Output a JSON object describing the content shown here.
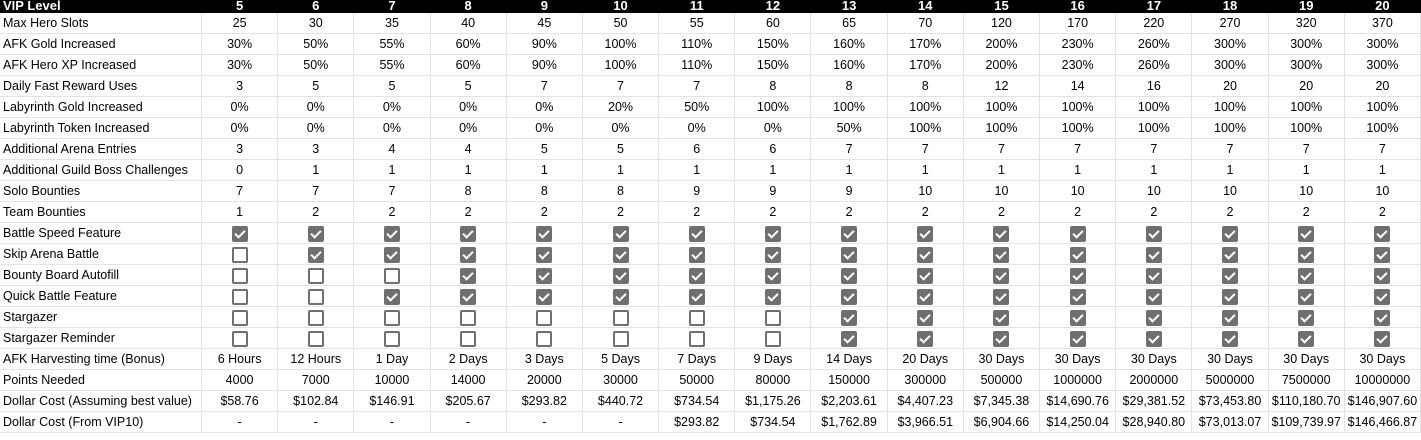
{
  "header": {
    "label": "VIP Level",
    "levels": [
      "5",
      "6",
      "7",
      "8",
      "9",
      "10",
      "11",
      "12",
      "13",
      "14",
      "15",
      "16",
      "17",
      "18",
      "19",
      "20"
    ]
  },
  "rows": [
    {
      "label": "Max Hero Slots",
      "type": "text",
      "values": [
        "25",
        "30",
        "35",
        "40",
        "45",
        "50",
        "55",
        "60",
        "65",
        "70",
        "120",
        "170",
        "220",
        "270",
        "320",
        "370"
      ]
    },
    {
      "label": "AFK Gold Increased",
      "type": "text",
      "values": [
        "30%",
        "50%",
        "55%",
        "60%",
        "90%",
        "100%",
        "110%",
        "150%",
        "160%",
        "170%",
        "200%",
        "230%",
        "260%",
        "300%",
        "300%",
        "300%"
      ]
    },
    {
      "label": "AFK Hero XP Increased",
      "type": "text",
      "values": [
        "30%",
        "50%",
        "55%",
        "60%",
        "90%",
        "100%",
        "110%",
        "150%",
        "160%",
        "170%",
        "200%",
        "230%",
        "260%",
        "300%",
        "300%",
        "300%"
      ]
    },
    {
      "label": "Daily Fast Reward Uses",
      "type": "text",
      "values": [
        "3",
        "5",
        "5",
        "5",
        "7",
        "7",
        "7",
        "8",
        "8",
        "8",
        "12",
        "14",
        "16",
        "20",
        "20",
        "20"
      ]
    },
    {
      "label": "Labyrinth Gold Increased",
      "type": "text",
      "values": [
        "0%",
        "0%",
        "0%",
        "0%",
        "0%",
        "20%",
        "50%",
        "100%",
        "100%",
        "100%",
        "100%",
        "100%",
        "100%",
        "100%",
        "100%",
        "100%"
      ]
    },
    {
      "label": "Labyrinth Token Increased",
      "type": "text",
      "values": [
        "0%",
        "0%",
        "0%",
        "0%",
        "0%",
        "0%",
        "0%",
        "0%",
        "50%",
        "100%",
        "100%",
        "100%",
        "100%",
        "100%",
        "100%",
        "100%"
      ]
    },
    {
      "label": "Additional Arena Entries",
      "type": "text",
      "values": [
        "3",
        "3",
        "4",
        "4",
        "5",
        "5",
        "6",
        "6",
        "7",
        "7",
        "7",
        "7",
        "7",
        "7",
        "7",
        "7"
      ]
    },
    {
      "label": "Additional Guild Boss Challenges",
      "type": "text",
      "values": [
        "0",
        "1",
        "1",
        "1",
        "1",
        "1",
        "1",
        "1",
        "1",
        "1",
        "1",
        "1",
        "1",
        "1",
        "1",
        "1"
      ]
    },
    {
      "label": "Solo Bounties",
      "type": "text",
      "values": [
        "7",
        "7",
        "7",
        "8",
        "8",
        "8",
        "9",
        "9",
        "9",
        "10",
        "10",
        "10",
        "10",
        "10",
        "10",
        "10"
      ]
    },
    {
      "label": "Team Bounties",
      "type": "text",
      "values": [
        "1",
        "2",
        "2",
        "2",
        "2",
        "2",
        "2",
        "2",
        "2",
        "2",
        "2",
        "2",
        "2",
        "2",
        "2",
        "2"
      ]
    },
    {
      "label": "Battle Speed Feature",
      "type": "check",
      "values": [
        true,
        true,
        true,
        true,
        true,
        true,
        true,
        true,
        true,
        true,
        true,
        true,
        true,
        true,
        true,
        true
      ]
    },
    {
      "label": "Skip Arena Battle",
      "type": "check",
      "values": [
        false,
        true,
        true,
        true,
        true,
        true,
        true,
        true,
        true,
        true,
        true,
        true,
        true,
        true,
        true,
        true
      ]
    },
    {
      "label": "Bounty Board Autofill",
      "type": "check",
      "values": [
        false,
        false,
        false,
        true,
        true,
        true,
        true,
        true,
        true,
        true,
        true,
        true,
        true,
        true,
        true,
        true
      ]
    },
    {
      "label": "Quick Battle Feature",
      "type": "check",
      "values": [
        false,
        false,
        true,
        true,
        true,
        true,
        true,
        true,
        true,
        true,
        true,
        true,
        true,
        true,
        true,
        true
      ]
    },
    {
      "label": "Stargazer",
      "type": "check",
      "values": [
        false,
        false,
        false,
        false,
        false,
        false,
        false,
        false,
        true,
        true,
        true,
        true,
        true,
        true,
        true,
        true
      ]
    },
    {
      "label": "Stargazer Reminder",
      "type": "check",
      "values": [
        false,
        false,
        false,
        false,
        false,
        false,
        false,
        false,
        true,
        true,
        true,
        true,
        true,
        true,
        true,
        true
      ]
    },
    {
      "label": "AFK Harvesting time (Bonus)",
      "type": "text",
      "values": [
        "6 Hours",
        "12 Hours",
        "1 Day",
        "2 Days",
        "3 Days",
        "5 Days",
        "7 Days",
        "9 Days",
        "14 Days",
        "20 Days",
        "30 Days",
        "30 Days",
        "30 Days",
        "30 Days",
        "30 Days",
        "30 Days"
      ]
    },
    {
      "label": "Points Needed",
      "type": "text",
      "values": [
        "4000",
        "7000",
        "10000",
        "14000",
        "20000",
        "30000",
        "50000",
        "80000",
        "150000",
        "300000",
        "500000",
        "1000000",
        "2000000",
        "5000000",
        "7500000",
        "10000000"
      ]
    },
    {
      "label": "Dollar Cost (Assuming best value)",
      "type": "text",
      "values": [
        "$58.76",
        "$102.84",
        "$146.91",
        "$205.67",
        "$293.82",
        "$440.72",
        "$734.54",
        "$1,175.26",
        "$2,203.61",
        "$4,407.23",
        "$7,345.38",
        "$14,690.76",
        "$29,381.52",
        "$73,453.80",
        "$110,180.70",
        "$146,907.60"
      ]
    },
    {
      "label": "Dollar Cost (From VIP10)",
      "type": "text",
      "values": [
        "-",
        "-",
        "-",
        "-",
        "-",
        "-",
        "$293.82",
        "$734.54",
        "$1,762.89",
        "$3,966.51",
        "$6,904.66",
        "$14,250.04",
        "$28,940.80",
        "$73,013.07",
        "$109,739.97",
        "$146,466.87"
      ]
    }
  ],
  "colors": {
    "header_bg": "#000000",
    "header_text": "#ffffff",
    "grid": "#e2e2e2",
    "checkbox": "#6f6f6f"
  }
}
